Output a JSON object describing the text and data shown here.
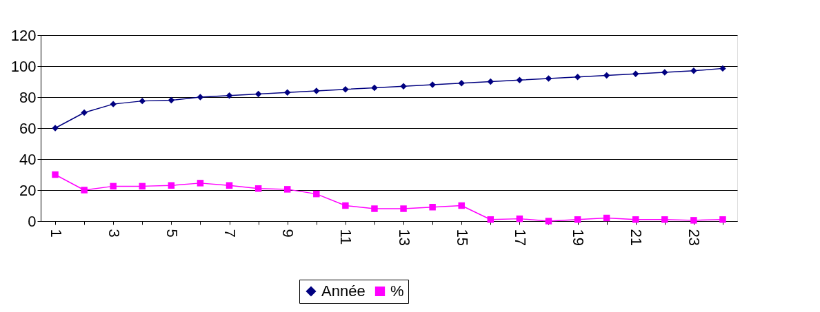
{
  "chart_data": {
    "type": "line",
    "categories": [
      "1",
      null,
      "3",
      null,
      "5",
      null,
      "7",
      null,
      "9",
      null,
      "11",
      null,
      "13",
      null,
      "15",
      null,
      "17",
      null,
      "19",
      null,
      "21",
      null,
      "23",
      null
    ],
    "series": [
      {
        "name": "Année",
        "color": "#000080",
        "marker": "diamond",
        "values": [
          60,
          70,
          75.5,
          77.5,
          78,
          80,
          81,
          82,
          83,
          84,
          85,
          86,
          87,
          88,
          89,
          90,
          91,
          92,
          93,
          94,
          95,
          96,
          97,
          98.5
        ]
      },
      {
        "name": "%",
        "color": "#ff00ff",
        "marker": "square",
        "values": [
          30,
          20,
          22.5,
          22.5,
          23,
          24.5,
          23,
          21,
          20.5,
          17.5,
          10,
          8,
          8,
          9,
          10,
          1,
          1.5,
          0,
          1,
          2,
          1,
          1,
          0.5,
          1
        ]
      }
    ],
    "ylim": [
      0,
      120
    ],
    "yticks": [
      0,
      20,
      40,
      60,
      80,
      100,
      120
    ],
    "grid": "y",
    "legend": "bottom"
  }
}
